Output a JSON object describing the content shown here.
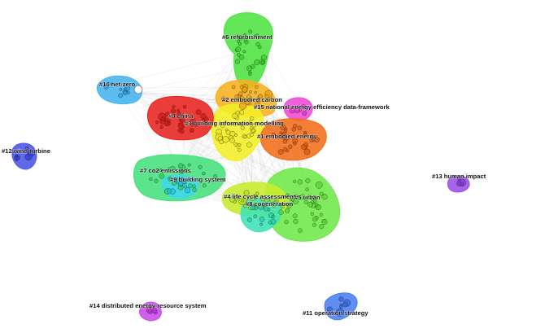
{
  "clusters": [
    {
      "id": "c0",
      "label": "#0 china",
      "color": "#e8221f",
      "dot": "#d41612"
    },
    {
      "id": "c1",
      "label": "#1 embodied energy",
      "color": "#f26d1a",
      "dot": "#e0580a"
    },
    {
      "id": "c2",
      "label": "#2 embodied carbon",
      "color": "#f7b21e",
      "dot": "#f0a00c"
    },
    {
      "id": "c3",
      "label": "#3 building information modelling",
      "color": "#f3ef27",
      "dot": "#e8e41c"
    },
    {
      "id": "c4",
      "label": "#4 life cycle assessment",
      "color": "#c8ec2b",
      "dot": "#b4dc1a"
    },
    {
      "id": "c5",
      "label": "#5 urban",
      "color": "#6fe84a",
      "dot": "#55d62e"
    },
    {
      "id": "c6",
      "label": "#6 refurbishment",
      "color": "#4fe342",
      "dot": "#36cf2a"
    },
    {
      "id": "c7",
      "label": "#7 co2 emissions",
      "color": "#46e07c",
      "dot": "#2ccc63"
    },
    {
      "id": "c8",
      "label": "#8 cogeneration",
      "color": "#3ee2b8",
      "dot": "#22cfa2"
    },
    {
      "id": "c9",
      "label": "#9 building system",
      "color": "#3fd8ec",
      "dot": "#1ec4dc"
    },
    {
      "id": "c10",
      "label": "#10 net-zero",
      "color": "#46b4f0",
      "dot": "#2a9ee2"
    },
    {
      "id": "c11",
      "label": "#11 operation strategy",
      "color": "#4a7ef0",
      "dot": "#2f66e0"
    },
    {
      "id": "c12",
      "label": "#12 wind turbine",
      "color": "#4a55e6",
      "dot": "#2f3ad6"
    },
    {
      "id": "c13",
      "label": "#13 human impact",
      "color": "#9a50e6",
      "dot": "#843ad6"
    },
    {
      "id": "c14",
      "label": "#14 distributed energy resource system",
      "color": "#c84ae6",
      "dot": "#b42fd6"
    },
    {
      "id": "c15",
      "label": "#15 national energy efficiency data-framework",
      "color": "#ee4ad8",
      "dot": "#dc2fc4"
    }
  ]
}
